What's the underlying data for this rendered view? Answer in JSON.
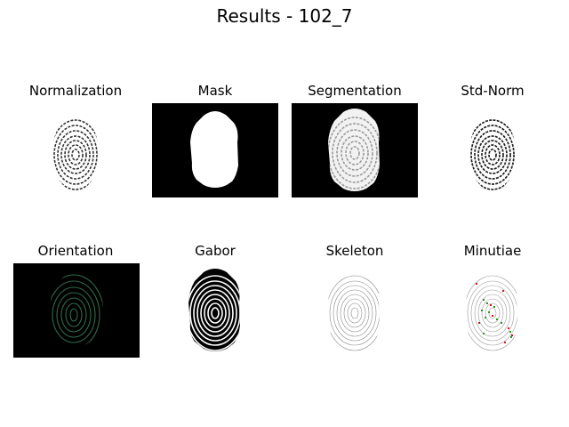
{
  "figure": {
    "title": "Results - 102_7"
  },
  "panels": [
    {
      "title": "Normalization",
      "image_icon": "fingerprint-normalized-image",
      "background": "white"
    },
    {
      "title": "Mask",
      "image_icon": "fingerprint-mask-image",
      "background": "black"
    },
    {
      "title": "Segmentation",
      "image_icon": "fingerprint-segmentation-image",
      "background": "black"
    },
    {
      "title": "Std-Norm",
      "image_icon": "fingerprint-stdnorm-image",
      "background": "white"
    },
    {
      "title": "Orientation",
      "image_icon": "fingerprint-orientation-image",
      "background": "black"
    },
    {
      "title": "Gabor",
      "image_icon": "fingerprint-gabor-image",
      "background": "white"
    },
    {
      "title": "Skeleton",
      "image_icon": "fingerprint-skeleton-image",
      "background": "white"
    },
    {
      "title": "Minutiae",
      "image_icon": "fingerprint-minutiae-image",
      "background": "white"
    }
  ],
  "colors": {
    "orientation_lines": "#2e6b4a",
    "minutiae_termination": "#d11a1a",
    "minutiae_bifurcation": "#2a9a1a"
  }
}
